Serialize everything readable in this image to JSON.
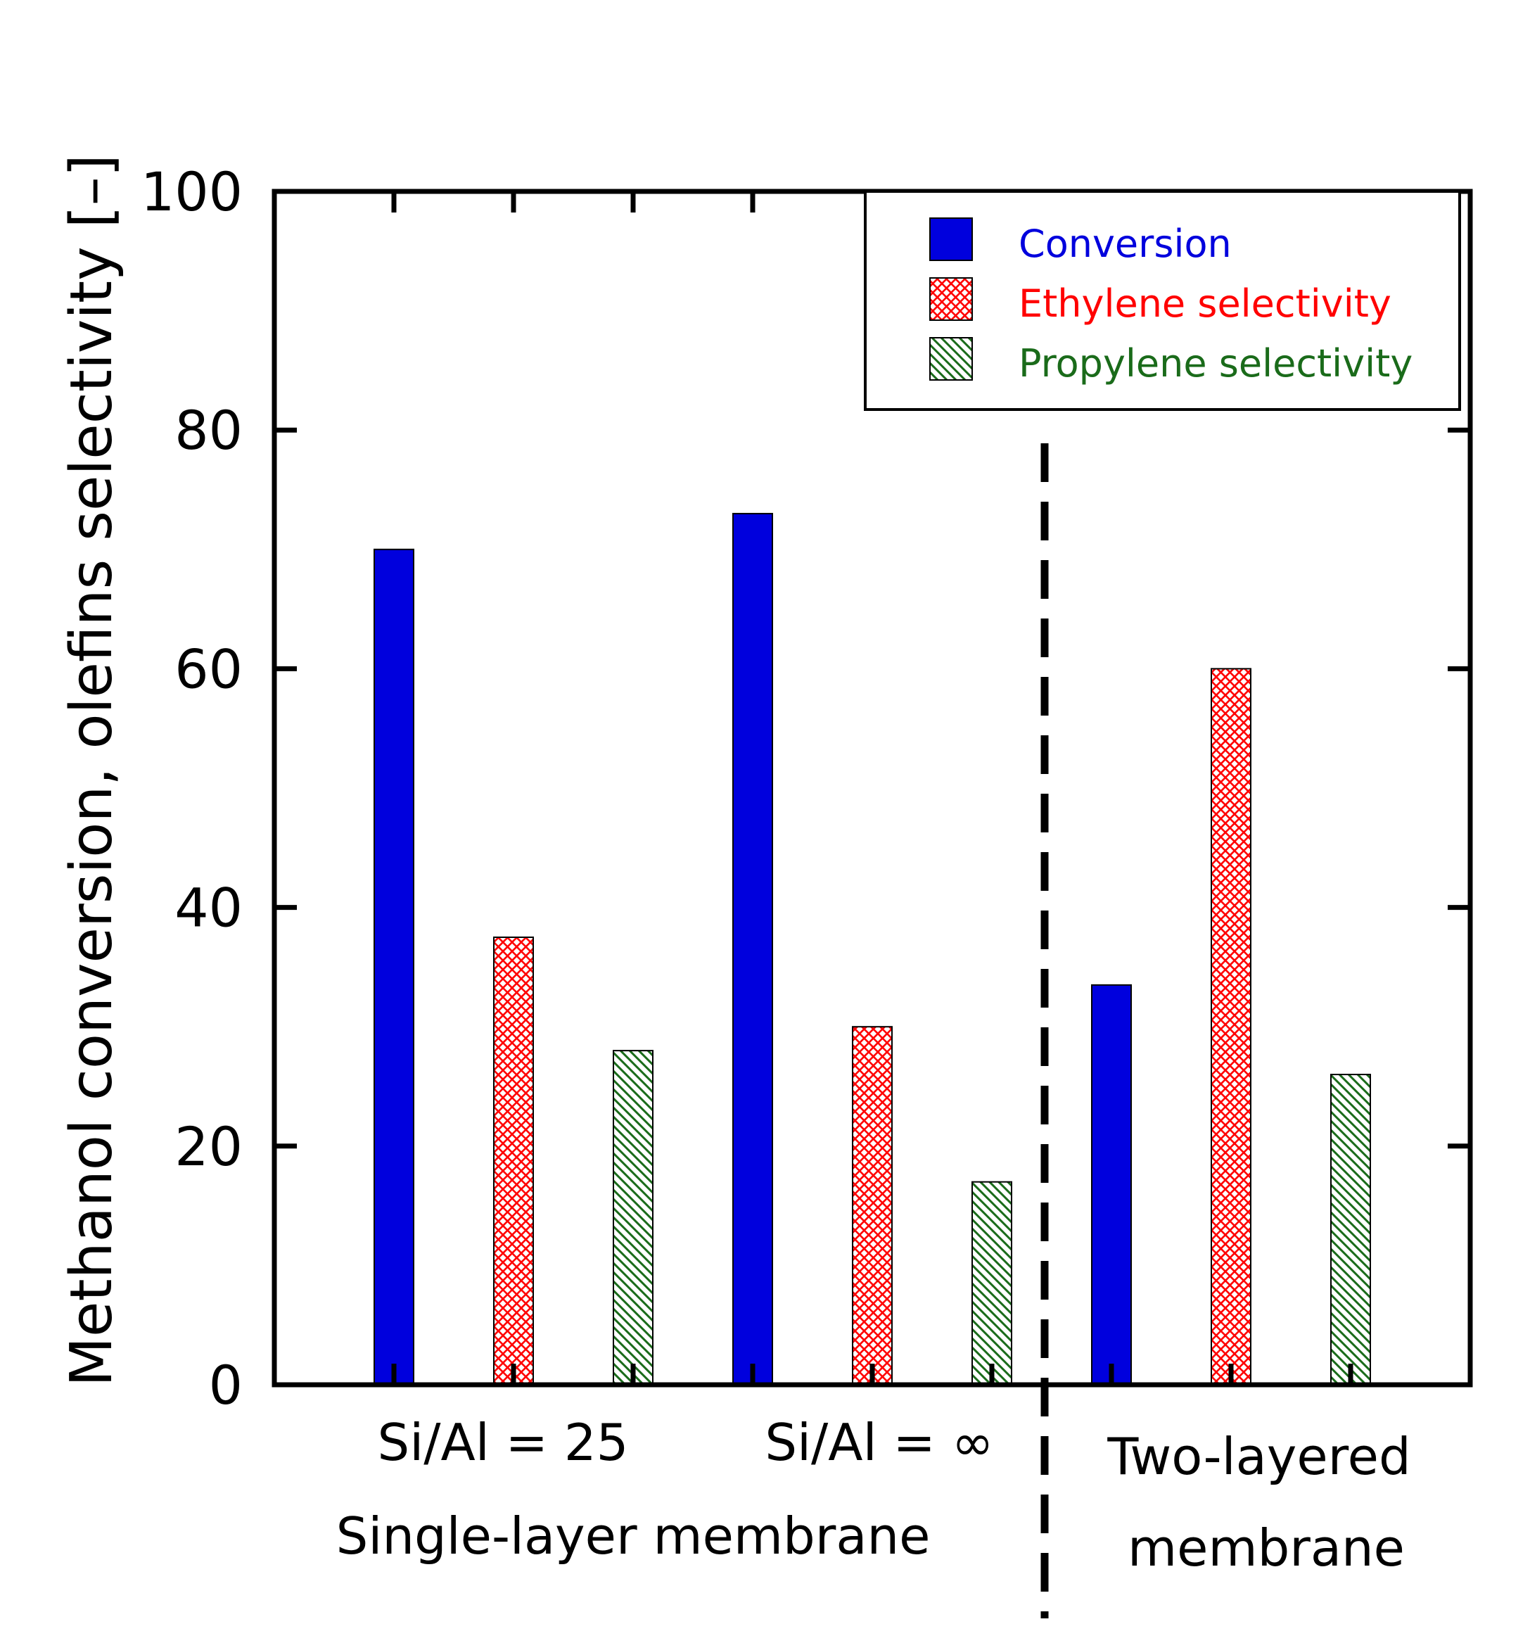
{
  "chart_data": {
    "type": "bar",
    "title": "",
    "ylabel": "Methanol conversion, olefins selectivity [–]",
    "xlabel": "",
    "ylim": [
      0,
      100
    ],
    "yticks": [
      "0",
      "20",
      "40",
      "60",
      "80",
      "100"
    ],
    "categories": [
      "Si/Al = 25",
      "Si/Al = ∞",
      "Two-layered membrane"
    ],
    "group_labels": {
      "cat1": "Si/Al = 25",
      "cat2": "Si/Al = ∞",
      "single_layer": "Single-layer membrane",
      "two_layer_line1": "Two-layered",
      "two_layer_line2": "membrane"
    },
    "series": [
      {
        "name": "Conversion",
        "values": [
          70,
          73,
          33.5
        ],
        "color": "#0000dd",
        "pattern": "solid"
      },
      {
        "name": "Ethylene selectivity",
        "values": [
          37.5,
          30,
          60
        ],
        "color": "#ff0000",
        "pattern": "crosshatch"
      },
      {
        "name": "Propylene selectivity",
        "values": [
          28,
          17,
          26
        ],
        "color": "#1a6b1a",
        "pattern": "diagonal"
      }
    ],
    "legend_position": "top-right",
    "divider": "dashed vertical line between single-layer and two-layered groups"
  }
}
